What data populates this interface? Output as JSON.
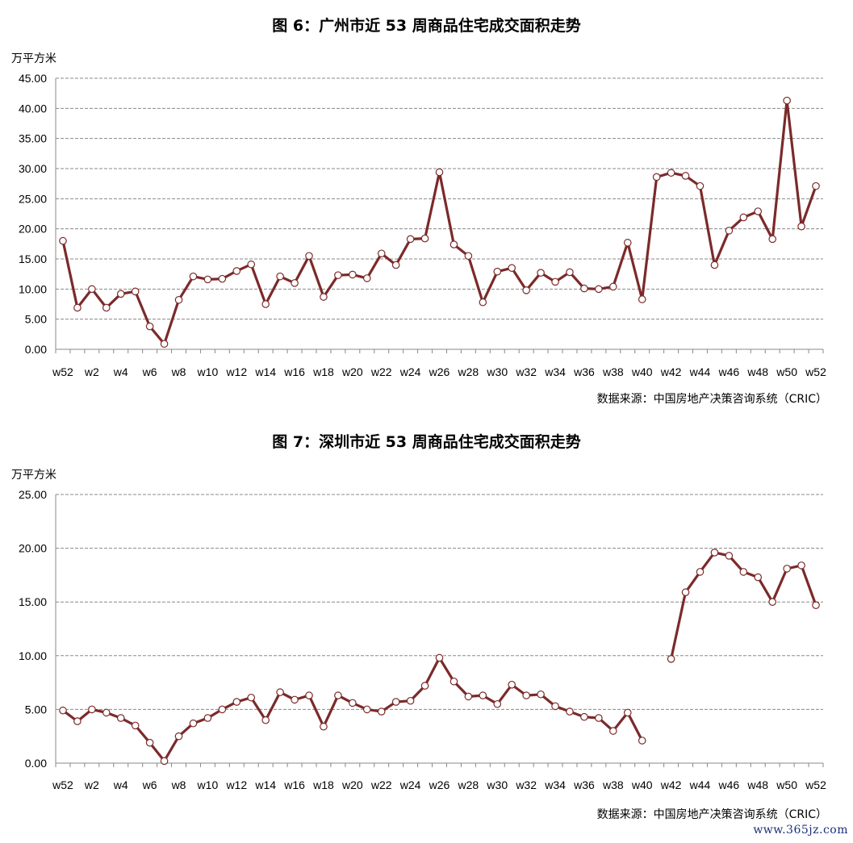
{
  "charts": [
    {
      "title": "图 6：广州市近 53 周商品住宅成交面积走势",
      "unit": "万平方米",
      "source": "数据来源：中国房地产决策咨询系统（CRIC）"
    },
    {
      "title": "图 7：深圳市近 53 周商品住宅成交面积走势",
      "unit": "万平方米",
      "source": "数据来源：中国房地产决策咨询系统（CRIC）"
    }
  ],
  "watermark": "www.365jz.com",
  "colors": {
    "line": "#7b2a2a",
    "marker_fill": "#ffffff",
    "grid": "#888888"
  },
  "chart_data": [
    {
      "type": "line",
      "title": "图 6：广州市近 53 周商品住宅成交面积走势",
      "ylabel": "万平方米",
      "ylim": [
        0,
        45
      ],
      "yticks": [
        "0.00",
        "5.00",
        "10.00",
        "15.00",
        "20.00",
        "25.00",
        "30.00",
        "35.00",
        "40.00",
        "45.00"
      ],
      "x": [
        "w52",
        "w1",
        "w2",
        "w3",
        "w4",
        "w5",
        "w6",
        "w7",
        "w8",
        "w9",
        "w10",
        "w11",
        "w12",
        "w13",
        "w14",
        "w15",
        "w16",
        "w17",
        "w18",
        "w19",
        "w20",
        "w21",
        "w22",
        "w23",
        "w24",
        "w25",
        "w26",
        "w27",
        "w28",
        "w29",
        "w30",
        "w31",
        "w32",
        "w33",
        "w34",
        "w35",
        "w36",
        "w37",
        "w38",
        "w39",
        "w40",
        "w41",
        "w42",
        "w43",
        "w44",
        "w45",
        "w46",
        "w47",
        "w48",
        "w49",
        "w50",
        "w51",
        "w52"
      ],
      "xtick_labels": [
        "w52",
        "w2",
        "w4",
        "w6",
        "w8",
        "w10",
        "w12",
        "w14",
        "w16",
        "w18",
        "w20",
        "w22",
        "w24",
        "w26",
        "w28",
        "w30",
        "w32",
        "w34",
        "w36",
        "w38",
        "w40",
        "w42",
        "w44",
        "w46",
        "w48",
        "w50",
        "w52"
      ],
      "grid": true,
      "series": [
        {
          "values": [
            18.0,
            6.9,
            10.0,
            6.9,
            9.2,
            9.6,
            3.8,
            0.9,
            8.2,
            12.1,
            11.6,
            11.7,
            13.0,
            14.1,
            7.5,
            12.1,
            11.0,
            15.5,
            8.7,
            12.3,
            12.4,
            11.8,
            15.9,
            14.0,
            18.3,
            18.4,
            29.4,
            17.4,
            15.5,
            7.8,
            12.9,
            13.5,
            9.8,
            12.7,
            11.2,
            12.8,
            10.1,
            10.0,
            10.4,
            17.7,
            8.3,
            28.6,
            29.3,
            28.8,
            27.1,
            14.0,
            19.7,
            21.9,
            22.9,
            18.3,
            41.3,
            20.4,
            27.1
          ]
        }
      ]
    },
    {
      "type": "line",
      "title": "图 7：深圳市近 53 周商品住宅成交面积走势",
      "ylabel": "万平方米",
      "ylim": [
        0,
        25
      ],
      "yticks": [
        "0.00",
        "5.00",
        "10.00",
        "15.00",
        "20.00",
        "25.00"
      ],
      "x": [
        "w52",
        "w1",
        "w2",
        "w3",
        "w4",
        "w5",
        "w6",
        "w7",
        "w8",
        "w9",
        "w10",
        "w11",
        "w12",
        "w13",
        "w14",
        "w15",
        "w16",
        "w17",
        "w18",
        "w19",
        "w20",
        "w21",
        "w22",
        "w23",
        "w24",
        "w25",
        "w26",
        "w27",
        "w28",
        "w29",
        "w30",
        "w31",
        "w32",
        "w33",
        "w34",
        "w35",
        "w36",
        "w37",
        "w38",
        "w39",
        "w40",
        "w41",
        "w42",
        "w43",
        "w44",
        "w45",
        "w46",
        "w47",
        "w48",
        "w49",
        "w50",
        "w51",
        "w52"
      ],
      "xtick_labels": [
        "w52",
        "w2",
        "w4",
        "w6",
        "w8",
        "w10",
        "w12",
        "w14",
        "w16",
        "w18",
        "w20",
        "w22",
        "w24",
        "w26",
        "w28",
        "w30",
        "w32",
        "w34",
        "w36",
        "w38",
        "w40",
        "w42",
        "w44",
        "w46",
        "w48",
        "w50",
        "w52"
      ],
      "grid": true,
      "series": [
        {
          "values": [
            4.9,
            3.9,
            5.0,
            4.7,
            4.2,
            3.5,
            1.9,
            0.2,
            2.5,
            3.7,
            4.2,
            5.0,
            5.7,
            6.1,
            4.0,
            6.6,
            5.9,
            6.3,
            3.4,
            6.3,
            5.6,
            5.0,
            4.8,
            5.7,
            5.8,
            7.2,
            9.8,
            7.6,
            6.2,
            6.3,
            5.5,
            7.3,
            6.3,
            6.4,
            5.3,
            4.8,
            4.3,
            4.2,
            3.0,
            4.7,
            2.1,
            null,
            9.7,
            15.9,
            17.8,
            19.6,
            19.3,
            17.8,
            17.3,
            15.0,
            18.1,
            18.4,
            14.7
          ]
        }
      ]
    }
  ]
}
